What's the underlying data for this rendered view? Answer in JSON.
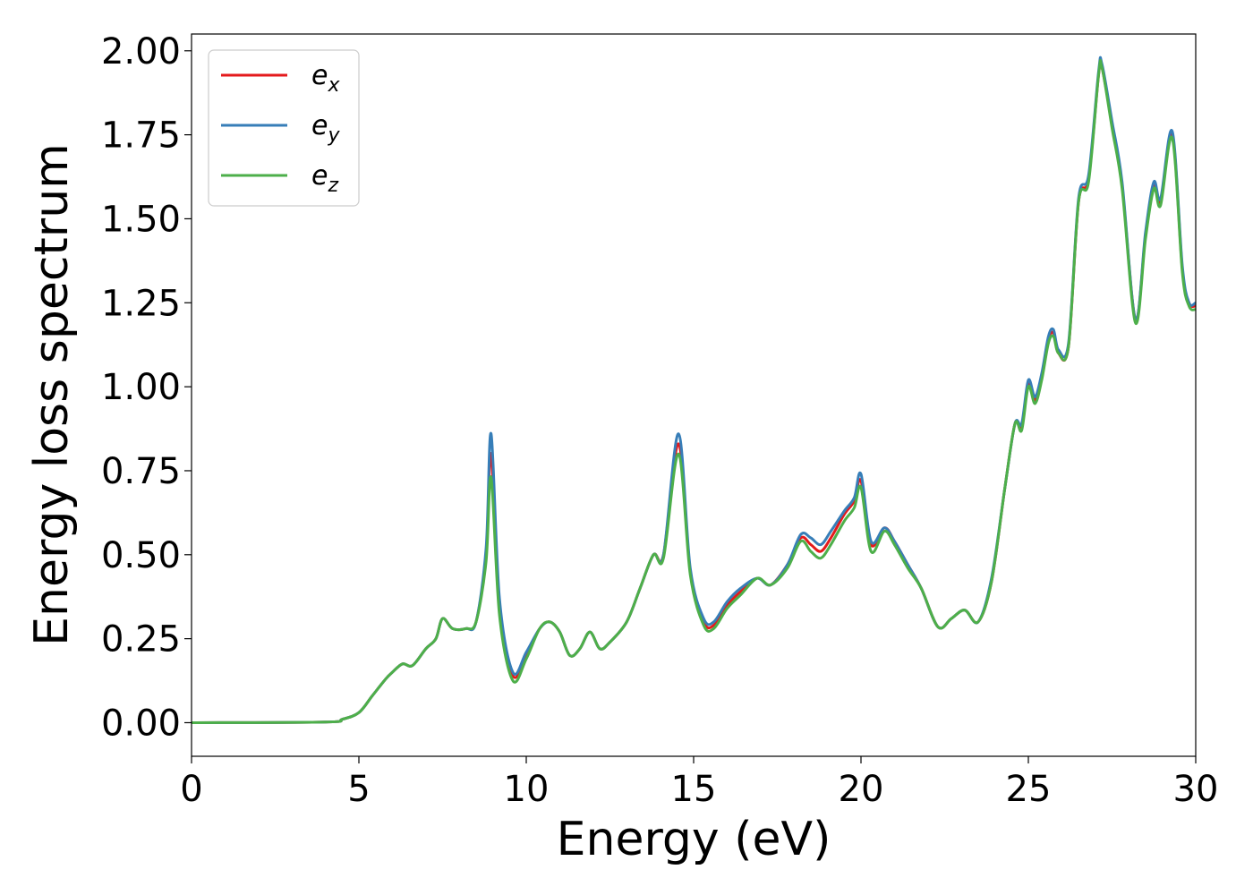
{
  "chart_data": {
    "type": "line",
    "xlabel": "Energy (eV)",
    "ylabel": "Energy loss spectrum",
    "xlim": [
      0,
      30
    ],
    "ylim": [
      -0.1,
      2.05
    ],
    "x_ticks": [
      0,
      5,
      10,
      15,
      20,
      25,
      30
    ],
    "y_ticks": [
      0.0,
      0.25,
      0.5,
      0.75,
      1.0,
      1.25,
      1.5,
      1.75,
      2.0
    ],
    "x_tick_labels": [
      "0",
      "5",
      "10",
      "15",
      "20",
      "25",
      "30"
    ],
    "y_tick_labels": [
      "0.00",
      "0.25",
      "0.50",
      "0.75",
      "1.00",
      "1.25",
      "1.50",
      "1.75",
      "2.00"
    ],
    "grid": false,
    "legend_position": "top-left",
    "x": [
      0,
      4.0,
      4.5,
      5.0,
      5.4,
      5.8,
      6.0,
      6.3,
      6.6,
      7.0,
      7.3,
      7.5,
      7.8,
      8.2,
      8.5,
      8.8,
      8.95,
      9.2,
      9.6,
      10.0,
      10.4,
      10.7,
      11.0,
      11.3,
      11.6,
      11.9,
      12.2,
      12.5,
      13.0,
      13.4,
      13.8,
      14.1,
      14.55,
      14.9,
      15.3,
      15.6,
      16.0,
      16.4,
      16.9,
      17.3,
      17.8,
      18.2,
      18.5,
      18.8,
      19.1,
      19.5,
      19.8,
      20.0,
      20.3,
      20.7,
      21.0,
      21.4,
      21.8,
      22.3,
      22.7,
      23.1,
      23.5,
      23.9,
      24.3,
      24.6,
      24.8,
      25.0,
      25.2,
      25.4,
      25.6,
      25.75,
      25.9,
      26.2,
      26.5,
      26.8,
      27.1,
      27.2,
      27.5,
      27.8,
      28.2,
      28.5,
      28.75,
      28.95,
      29.3,
      29.6,
      29.8,
      30.0
    ],
    "series": [
      {
        "name": "e_x",
        "color": "#e41a1c",
        "values": [
          0.0,
          0.002,
          0.01,
          0.03,
          0.08,
          0.13,
          0.15,
          0.175,
          0.17,
          0.22,
          0.25,
          0.31,
          0.28,
          0.28,
          0.3,
          0.5,
          0.8,
          0.35,
          0.14,
          0.2,
          0.28,
          0.3,
          0.27,
          0.2,
          0.22,
          0.27,
          0.22,
          0.24,
          0.3,
          0.4,
          0.5,
          0.5,
          0.83,
          0.45,
          0.3,
          0.29,
          0.35,
          0.39,
          0.43,
          0.41,
          0.47,
          0.55,
          0.53,
          0.51,
          0.55,
          0.62,
          0.66,
          0.72,
          0.53,
          0.58,
          0.54,
          0.47,
          0.4,
          0.285,
          0.31,
          0.335,
          0.3,
          0.42,
          0.7,
          0.89,
          0.88,
          1.01,
          0.96,
          1.03,
          1.14,
          1.16,
          1.1,
          1.12,
          1.55,
          1.62,
          1.93,
          1.95,
          1.78,
          1.6,
          1.2,
          1.45,
          1.6,
          1.55,
          1.75,
          1.35,
          1.25,
          1.24
        ]
      },
      {
        "name": "e_y",
        "color": "#377eb8",
        "values": [
          0.0,
          0.002,
          0.01,
          0.03,
          0.08,
          0.13,
          0.15,
          0.175,
          0.17,
          0.22,
          0.25,
          0.31,
          0.28,
          0.28,
          0.3,
          0.52,
          0.86,
          0.37,
          0.15,
          0.21,
          0.28,
          0.3,
          0.27,
          0.2,
          0.22,
          0.27,
          0.22,
          0.24,
          0.3,
          0.4,
          0.5,
          0.5,
          0.86,
          0.46,
          0.31,
          0.3,
          0.36,
          0.4,
          0.43,
          0.41,
          0.47,
          0.56,
          0.55,
          0.53,
          0.57,
          0.63,
          0.67,
          0.74,
          0.54,
          0.58,
          0.54,
          0.47,
          0.4,
          0.285,
          0.31,
          0.335,
          0.3,
          0.43,
          0.7,
          0.89,
          0.89,
          1.02,
          0.97,
          1.04,
          1.15,
          1.17,
          1.11,
          1.13,
          1.56,
          1.63,
          1.94,
          1.96,
          1.79,
          1.61,
          1.2,
          1.46,
          1.61,
          1.56,
          1.76,
          1.36,
          1.25,
          1.25
        ]
      },
      {
        "name": "e_z",
        "color": "#4daf4a",
        "values": [
          0.0,
          0.002,
          0.01,
          0.03,
          0.08,
          0.13,
          0.15,
          0.175,
          0.17,
          0.22,
          0.25,
          0.31,
          0.28,
          0.28,
          0.3,
          0.48,
          0.73,
          0.32,
          0.125,
          0.19,
          0.28,
          0.3,
          0.27,
          0.2,
          0.22,
          0.27,
          0.22,
          0.24,
          0.3,
          0.4,
          0.5,
          0.49,
          0.8,
          0.44,
          0.29,
          0.28,
          0.34,
          0.38,
          0.43,
          0.41,
          0.46,
          0.54,
          0.51,
          0.49,
          0.53,
          0.6,
          0.64,
          0.7,
          0.51,
          0.57,
          0.53,
          0.46,
          0.4,
          0.285,
          0.31,
          0.335,
          0.3,
          0.42,
          0.7,
          0.89,
          0.87,
          1.0,
          0.95,
          1.02,
          1.13,
          1.15,
          1.1,
          1.12,
          1.55,
          1.61,
          1.93,
          1.95,
          1.77,
          1.59,
          1.19,
          1.44,
          1.59,
          1.54,
          1.74,
          1.34,
          1.24,
          1.23
        ]
      }
    ],
    "legend": [
      {
        "base": "e",
        "sub": "x",
        "color": "#e41a1c"
      },
      {
        "base": "e",
        "sub": "y",
        "color": "#377eb8"
      },
      {
        "base": "e",
        "sub": "z",
        "color": "#4daf4a"
      }
    ]
  }
}
